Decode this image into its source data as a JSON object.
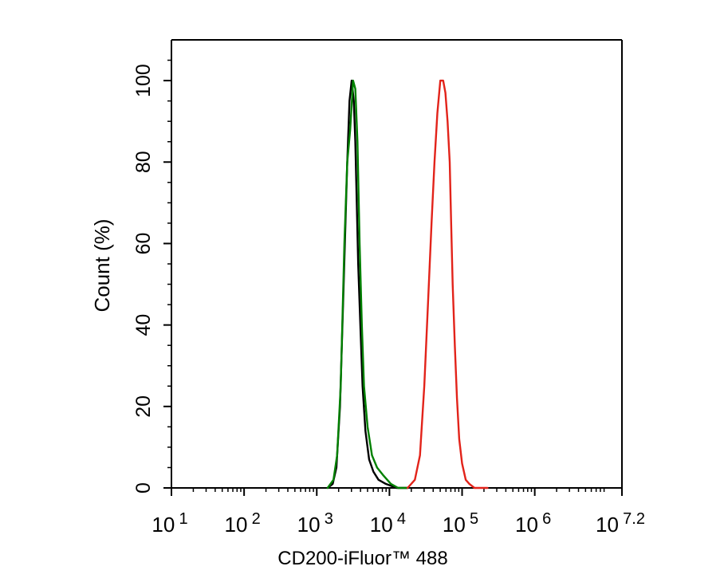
{
  "chart_data": {
    "type": "line",
    "title": "",
    "xlabel": "CD200-iFluor™ 488",
    "ylabel": "Count  (%)",
    "x_scale": "log10",
    "xlim": [
      1,
      7.2
    ],
    "ylim": [
      0,
      110
    ],
    "x_ticks": [
      {
        "base": "10",
        "exp": "1"
      },
      {
        "base": "10",
        "exp": "2"
      },
      {
        "base": "10",
        "exp": "3"
      },
      {
        "base": "10",
        "exp": "4"
      },
      {
        "base": "10",
        "exp": "5"
      },
      {
        "base": "10",
        "exp": "6"
      },
      {
        "base": "10",
        "exp": "7.2"
      }
    ],
    "y_ticks": [
      "0",
      "20",
      "40",
      "60",
      "80",
      "100"
    ],
    "grid": false,
    "series": [
      {
        "color": "#000000",
        "x": [
          3.15,
          3.22,
          3.27,
          3.32,
          3.37,
          3.42,
          3.45,
          3.48,
          3.51,
          3.53,
          3.55,
          3.57,
          3.6,
          3.63,
          3.67,
          3.72,
          3.78,
          3.85,
          3.95,
          4.1,
          4.25
        ],
        "y": [
          0,
          1,
          5,
          20,
          50,
          80,
          95,
          100,
          95,
          85,
          70,
          55,
          40,
          25,
          14,
          7,
          4,
          2,
          1,
          0,
          0
        ]
      },
      {
        "color": "#008000",
        "x": [
          3.15,
          3.23,
          3.28,
          3.33,
          3.38,
          3.42,
          3.46,
          3.5,
          3.53,
          3.56,
          3.59,
          3.62,
          3.65,
          3.7,
          3.76,
          3.83,
          3.92,
          4.02,
          4.12,
          4.25
        ],
        "y": [
          0,
          2,
          8,
          25,
          60,
          80,
          88,
          100,
          98,
          85,
          60,
          40,
          25,
          15,
          8,
          5,
          3,
          1,
          0,
          0
        ]
      },
      {
        "color": "#e2231a",
        "x": [
          4.25,
          4.35,
          4.42,
          4.48,
          4.53,
          4.58,
          4.62,
          4.66,
          4.7,
          4.74,
          4.77,
          4.8,
          4.83,
          4.85,
          4.87,
          4.9,
          4.93,
          4.96,
          5.0,
          5.05,
          5.1,
          5.17,
          5.25,
          5.35
        ],
        "y": [
          0,
          2,
          8,
          25,
          45,
          65,
          80,
          92,
          100,
          100,
          97,
          90,
          80,
          65,
          50,
          35,
          22,
          12,
          6,
          2,
          1,
          0,
          0,
          0
        ]
      }
    ]
  }
}
